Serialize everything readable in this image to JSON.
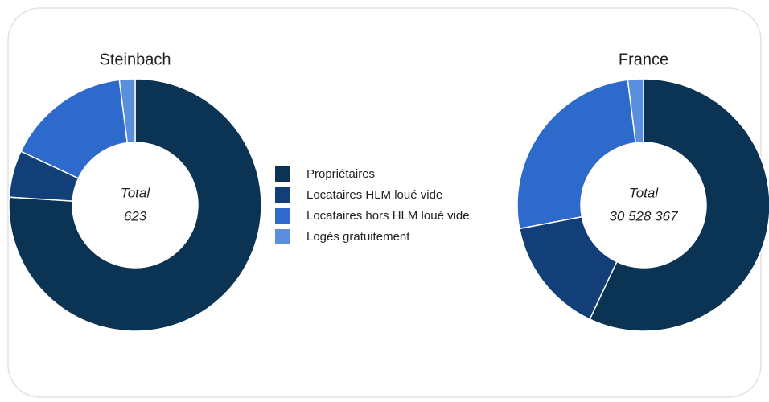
{
  "chart_data": [
    {
      "type": "pie",
      "title": "Steinbach",
      "categories": [
        "Propriétaires",
        "Locataires HLM loué vide",
        "Locataires hors HLM loué vide",
        "Logés gratuitement"
      ],
      "values": [
        76,
        6,
        16,
        2
      ],
      "colors": [
        "#0b3454",
        "#133f78",
        "#2e69cc",
        "#5a8fdd"
      ],
      "center_label": "Total",
      "total": 623
    },
    {
      "type": "pie",
      "title": "France",
      "categories": [
        "Propriétaires",
        "Locataires HLM loué vide",
        "Locataires hors HLM loué vide",
        "Logés gratuitement"
      ],
      "values": [
        57,
        15,
        26,
        2
      ],
      "colors": [
        "#0b3454",
        "#133f78",
        "#2e69cc",
        "#5a8fdd"
      ],
      "center_label": "Total",
      "total": {
        "value": 30528367,
        "label": "30 528 367"
      }
    }
  ]
}
